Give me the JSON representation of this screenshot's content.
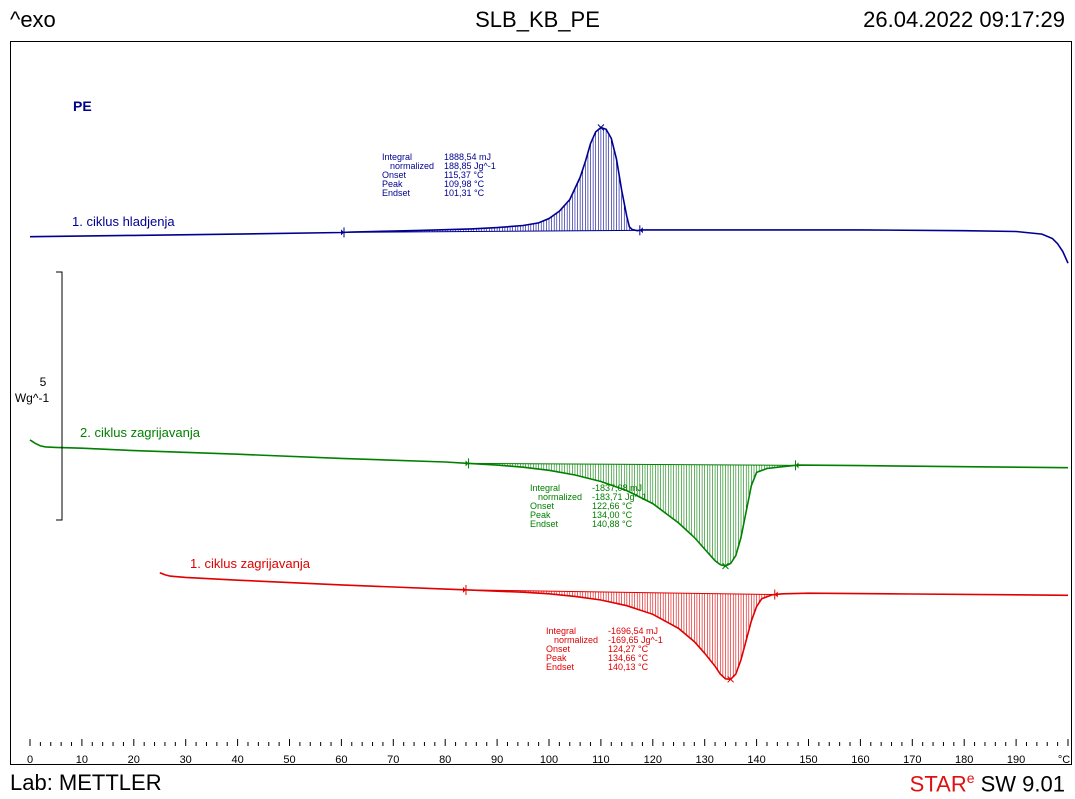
{
  "header": {
    "exo_label": "^exo",
    "title": "SLB_KB_PE",
    "datetime": "26.04.2022 09:17:29"
  },
  "footer": {
    "lab": "Lab: METTLER",
    "software_prefix": "STAR",
    "software_superscript": "e",
    "software_suffix": " SW 9.01"
  },
  "chart_data": {
    "type": "line",
    "title": "PE",
    "xunit": "°C",
    "xlim": [
      0,
      200
    ],
    "x_ticks": [
      0,
      10,
      20,
      30,
      40,
      50,
      60,
      70,
      80,
      90,
      100,
      110,
      120,
      130,
      140,
      150,
      160,
      170,
      180,
      190
    ],
    "scale_bar": {
      "value": "5",
      "unit": "Wg^-1"
    },
    "grid": false,
    "series": [
      {
        "name": "1. ciklus hladjenja",
        "color": "#000090",
        "baseline_start": 60.5,
        "baseline_end": 117.5,
        "points": [
          [
            0,
            -0.18
          ],
          [
            20,
            -0.13
          ],
          [
            40,
            -0.08
          ],
          [
            60,
            -0.02
          ],
          [
            62,
            0
          ],
          [
            66,
            0.02
          ],
          [
            70,
            0.04
          ],
          [
            75,
            0.06
          ],
          [
            80,
            0.09
          ],
          [
            85,
            0.12
          ],
          [
            90,
            0.17
          ],
          [
            95,
            0.25
          ],
          [
            98,
            0.35
          ],
          [
            100,
            0.52
          ],
          [
            102,
            0.8
          ],
          [
            104,
            1.25
          ],
          [
            106,
            2.1
          ],
          [
            107,
            2.7
          ],
          [
            108,
            3.4
          ],
          [
            109,
            3.85
          ],
          [
            110,
            4.02
          ],
          [
            111,
            3.95
          ],
          [
            112,
            3.6
          ],
          [
            113,
            2.8
          ],
          [
            114,
            1.6
          ],
          [
            115,
            0.6
          ],
          [
            115.5,
            0.2
          ],
          [
            116,
            0.1
          ],
          [
            117,
            0.05
          ],
          [
            118,
            0.08
          ],
          [
            130,
            0.08
          ],
          [
            160,
            0.08
          ],
          [
            180,
            0.05
          ],
          [
            190,
            0.02
          ],
          [
            195,
            -0.08
          ],
          [
            197,
            -0.25
          ],
          [
            198,
            -0.45
          ],
          [
            199,
            -0.75
          ],
          [
            200,
            -1.2
          ]
        ],
        "integral_box": [
          [
            "Integral",
            "1888,54 mJ"
          ],
          [
            "normalized",
            "188,85 Jg^-1"
          ],
          [
            "Onset",
            "115,37 °C"
          ],
          [
            "Peak",
            "109,98 °C"
          ],
          [
            "Endset",
            "101,31 °C"
          ]
        ]
      },
      {
        "name": "2. ciklus zagrijavanja",
        "color": "#008000",
        "baseline_start": 84.5,
        "baseline_end": 147.5,
        "points": [
          [
            0,
            0.35
          ],
          [
            1,
            0.22
          ],
          [
            2,
            0.12
          ],
          [
            3,
            0.08
          ],
          [
            5,
            0.06
          ],
          [
            10,
            0.03
          ],
          [
            20,
            -0.06
          ],
          [
            40,
            -0.2
          ],
          [
            60,
            -0.36
          ],
          [
            80,
            -0.5
          ],
          [
            85,
            -0.56
          ],
          [
            90,
            -0.62
          ],
          [
            95,
            -0.7
          ],
          [
            100,
            -0.82
          ],
          [
            105,
            -1.0
          ],
          [
            110,
            -1.25
          ],
          [
            115,
            -1.6
          ],
          [
            120,
            -2.1
          ],
          [
            125,
            -2.85
          ],
          [
            128,
            -3.4
          ],
          [
            130,
            -3.85
          ],
          [
            132,
            -4.3
          ],
          [
            133,
            -4.45
          ],
          [
            134,
            -4.5
          ],
          [
            135,
            -4.4
          ],
          [
            136,
            -4.1
          ],
          [
            137,
            -3.4
          ],
          [
            138,
            -2.4
          ],
          [
            139,
            -1.4
          ],
          [
            140,
            -0.9
          ],
          [
            142,
            -0.75
          ],
          [
            145,
            -0.68
          ],
          [
            148,
            -0.62
          ],
          [
            160,
            -0.64
          ],
          [
            180,
            -0.68
          ],
          [
            200,
            -0.72
          ]
        ],
        "integral_box": [
          [
            "Integral",
            "-1837,08 mJ"
          ],
          [
            "normalized",
            "-183,71 Jg^-1"
          ],
          [
            "Onset",
            "122,66 °C"
          ],
          [
            "Peak",
            "134,00 °C"
          ],
          [
            "Endset",
            "140,88 °C"
          ]
        ]
      },
      {
        "name": "1. ciklus zagrijavanja",
        "color": "#e00000",
        "baseline_start": 84.0,
        "baseline_end": 143.5,
        "points": [
          [
            25,
            0.05
          ],
          [
            26,
            -0.03
          ],
          [
            27,
            -0.08
          ],
          [
            28,
            -0.1
          ],
          [
            30,
            -0.13
          ],
          [
            40,
            -0.24
          ],
          [
            60,
            -0.42
          ],
          [
            80,
            -0.58
          ],
          [
            85,
            -0.62
          ],
          [
            90,
            -0.66
          ],
          [
            95,
            -0.7
          ],
          [
            100,
            -0.76
          ],
          [
            105,
            -0.86
          ],
          [
            110,
            -1.0
          ],
          [
            115,
            -1.22
          ],
          [
            120,
            -1.55
          ],
          [
            125,
            -2.1
          ],
          [
            128,
            -2.6
          ],
          [
            130,
            -3.05
          ],
          [
            132,
            -3.55
          ],
          [
            133,
            -3.85
          ],
          [
            134,
            -4.03
          ],
          [
            135,
            -4.05
          ],
          [
            136,
            -3.85
          ],
          [
            137,
            -3.3
          ],
          [
            138,
            -2.55
          ],
          [
            139,
            -1.8
          ],
          [
            140,
            -1.25
          ],
          [
            141,
            -0.95
          ],
          [
            143,
            -0.8
          ],
          [
            145,
            -0.76
          ],
          [
            150,
            -0.74
          ],
          [
            170,
            -0.77
          ],
          [
            190,
            -0.8
          ],
          [
            200,
            -0.82
          ]
        ],
        "integral_box": [
          [
            "Integral",
            "-1696,54 mJ"
          ],
          [
            "normalized",
            "-169,65 Jg^-1"
          ],
          [
            "Onset",
            "124,27 °C"
          ],
          [
            "Peak",
            "134,66 °C"
          ],
          [
            "Endset",
            "140,13 °C"
          ]
        ]
      }
    ]
  }
}
